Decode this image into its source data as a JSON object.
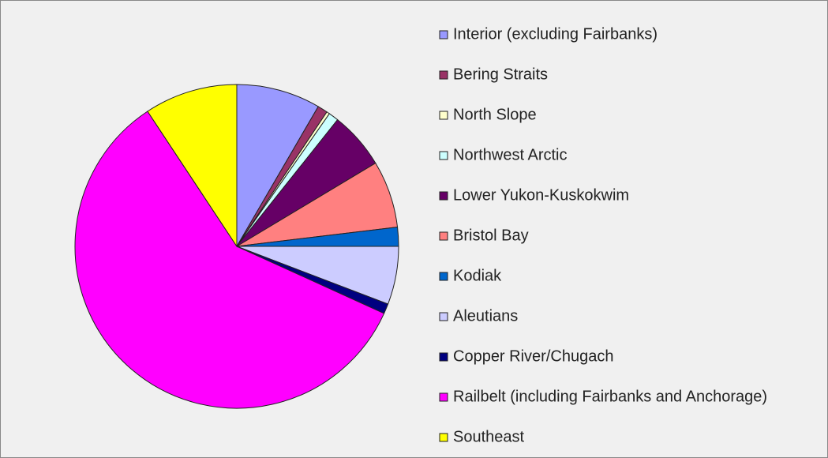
{
  "chart_data": {
    "type": "pie",
    "categories": [
      "Interior (excluding Fairbanks)",
      "Bering Straits",
      "North Slope",
      "Northwest Arctic",
      "Lower Yukon-Kuskokwim",
      "Bristol Bay",
      "Kodiak",
      "Aleutians",
      "Copper River/Chugach",
      "Railbelt (including Fairbanks and Anchorage)",
      "Southeast"
    ],
    "values": [
      8.4,
      1.0,
      0.3,
      1.0,
      5.7,
      6.7,
      1.9,
      5.8,
      1.0,
      58.9,
      9.3
    ],
    "colors": [
      "#9999ff",
      "#993366",
      "#ffffcc",
      "#ccffff",
      "#660066",
      "#ff8080",
      "#0066cc",
      "#ccccff",
      "#000080",
      "#ff00ff",
      "#ffff00"
    ],
    "legend": "right"
  }
}
